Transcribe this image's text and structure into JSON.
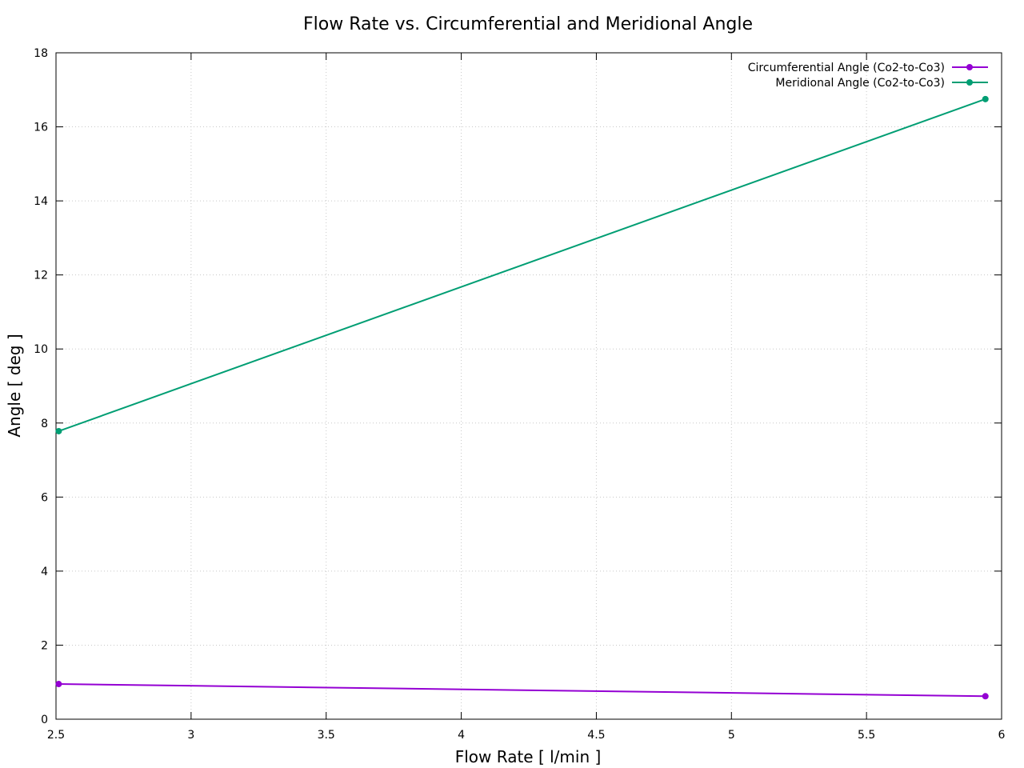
{
  "chart_data": {
    "type": "line",
    "title": "Flow Rate vs. Circumferential and Meridional Angle",
    "xlabel": "Flow Rate [ l/min ]",
    "ylabel": "Angle [ deg ]",
    "xlim": [
      2.5,
      6
    ],
    "ylim": [
      0,
      18
    ],
    "xticks": [
      2.5,
      3,
      3.5,
      4,
      4.5,
      5,
      5.5,
      6
    ],
    "yticks": [
      0,
      2,
      4,
      6,
      8,
      10,
      12,
      14,
      16,
      18
    ],
    "xtick_labels": [
      "2.5",
      "3",
      "3.5",
      "4",
      "4.5",
      "5",
      "5.5",
      "6"
    ],
    "ytick_labels": [
      "0",
      "2",
      "4",
      "6",
      "8",
      "10",
      "12",
      "14",
      "16",
      "18"
    ],
    "grid": true,
    "legend_position": "top-right",
    "series": [
      {
        "name": "Circumferential Angle (Co2-to-Co3)",
        "color": "#9400d3",
        "x": [
          2.51,
          5.94
        ],
        "y": [
          0.95,
          0.62
        ]
      },
      {
        "name": "Meridional Angle (Co2-to-Co3)",
        "color": "#009e73",
        "x": [
          2.51,
          5.94
        ],
        "y": [
          7.78,
          16.75
        ]
      }
    ]
  }
}
